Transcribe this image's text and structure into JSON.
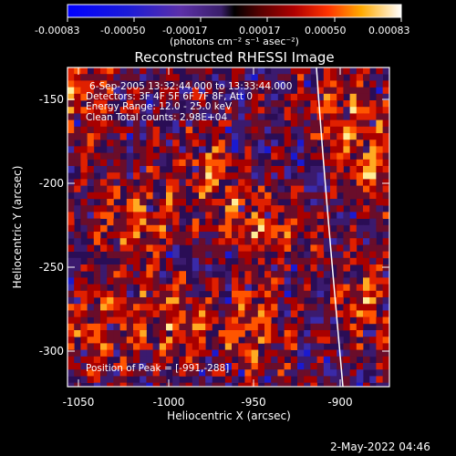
{
  "colorbar": {
    "tick_labels": [
      "-0.00083",
      "-0.00050",
      "-0.00017",
      "0.00017",
      "0.00050",
      "0.00083"
    ],
    "units_label": "(photons cm⁻² s⁻¹ asec⁻²)"
  },
  "plot": {
    "title": "Reconstructed RHESSI Image",
    "xlabel": "Heliocentric X (arcsec)",
    "ylabel": "Heliocentric Y (arcsec)",
    "x_ticks": [
      "-1050",
      "-1000",
      "-950",
      "-900"
    ],
    "y_ticks": [
      "-150",
      "-200",
      "-250",
      "-300"
    ],
    "info_lines": [
      "6-Sep-2005 13:32:44.000 to 13:33:44.000",
      "Detectors: 3F 4F 5F 6F 7F 8F, Att 0",
      "Energy Range: 12.0 - 25.0 keV",
      "Clean    Total counts: 2.98E+04"
    ],
    "peak_label": "Position of Peak = [-991,-288]"
  },
  "footer": {
    "timestamp": "2-May-2022 04:46"
  },
  "colors": {
    "background": "#000000",
    "text": "#ffffff",
    "limb": "#ffffff"
  },
  "chart_data": {
    "type": "heatmap",
    "title": "Reconstructed RHESSI Image",
    "xlabel": "Heliocentric X (arcsec)",
    "ylabel": "Heliocentric Y (arcsec)",
    "xlim": [
      -1061,
      -872
    ],
    "ylim": [
      -322,
      -134
    ],
    "colorbar_range": [
      -0.00083,
      0.00083
    ],
    "peak_position": [
      -991,
      -288
    ]
  }
}
